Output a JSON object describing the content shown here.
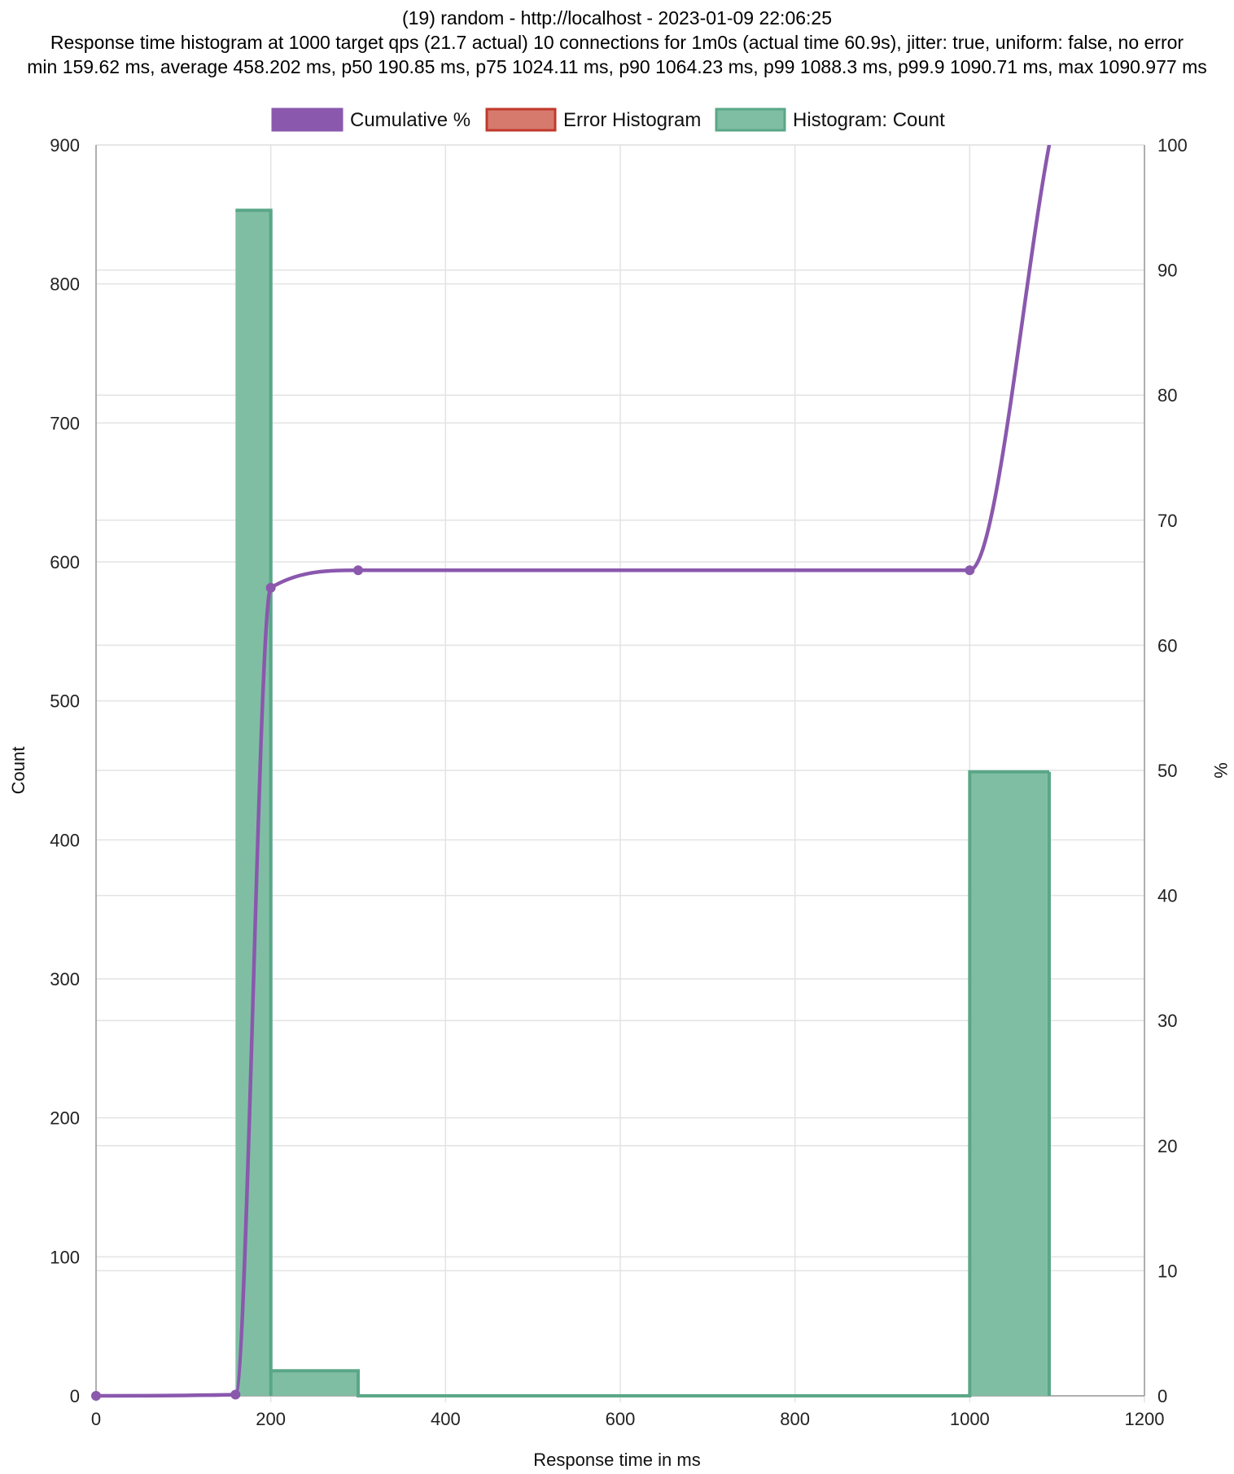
{
  "chart_data": {
    "type": "bar",
    "title_lines": [
      "(19) random - http://localhost - 2023-01-09 22:06:25",
      "Response time histogram at 1000 target qps (21.7 actual) 10 connections for 1m0s (actual time 60.9s), jitter: true, uniform: false, no error",
      "min 159.62 ms, average 458.202 ms, p50 190.85 ms, p75 1024.11 ms, p90 1064.23 ms, p99 1088.3 ms, p99.9 1090.71 ms, max 1090.977 ms"
    ],
    "xlabel": "Response time in ms",
    "ylabel_left": "Count",
    "ylabel_right": "%",
    "xlim": [
      0,
      1200
    ],
    "xticks": [
      "0",
      "200",
      "400",
      "600",
      "800",
      "1000",
      "1200"
    ],
    "ylim_left": [
      0,
      900
    ],
    "yticks_left": [
      "0",
      "100",
      "200",
      "300",
      "400",
      "500",
      "600",
      "700",
      "800",
      "900"
    ],
    "ylim_right": [
      0,
      100
    ],
    "yticks_right": [
      "0",
      "10",
      "20",
      "30",
      "40",
      "50",
      "60",
      "70",
      "80",
      "90",
      "100"
    ],
    "grid": true,
    "legend_position": "top",
    "legend": [
      {
        "label": "Cumulative %",
        "color": "#8a58ad"
      },
      {
        "label": "Error Histogram",
        "color": "#c0392b"
      },
      {
        "label": "Histogram: Count",
        "color": "#5aa788"
      }
    ],
    "series": [
      {
        "name": "Histogram: Count",
        "kind": "histogram",
        "color": "#5aa788",
        "fill": "#80bea4",
        "bins": [
          {
            "start": 159.62,
            "end": 200,
            "count": 853
          },
          {
            "start": 200,
            "end": 300,
            "count": 18
          },
          {
            "start": 300,
            "end": 1000,
            "count": 0
          },
          {
            "start": 1000,
            "end": 1090.977,
            "count": 449
          }
        ]
      },
      {
        "name": "Cumulative %",
        "kind": "line",
        "color": "#8a58ad",
        "points": [
          {
            "x": 0,
            "y": 0
          },
          {
            "x": 159.62,
            "y": 0.1
          },
          {
            "x": 200,
            "y": 64.6
          },
          {
            "x": 300,
            "y": 66.0
          },
          {
            "x": 1000,
            "y": 66.0
          },
          {
            "x": 1090.977,
            "y": 100
          }
        ]
      },
      {
        "name": "Error Histogram",
        "kind": "histogram",
        "color": "#c0392b",
        "fill": "#d77a6e",
        "bins": []
      }
    ]
  }
}
